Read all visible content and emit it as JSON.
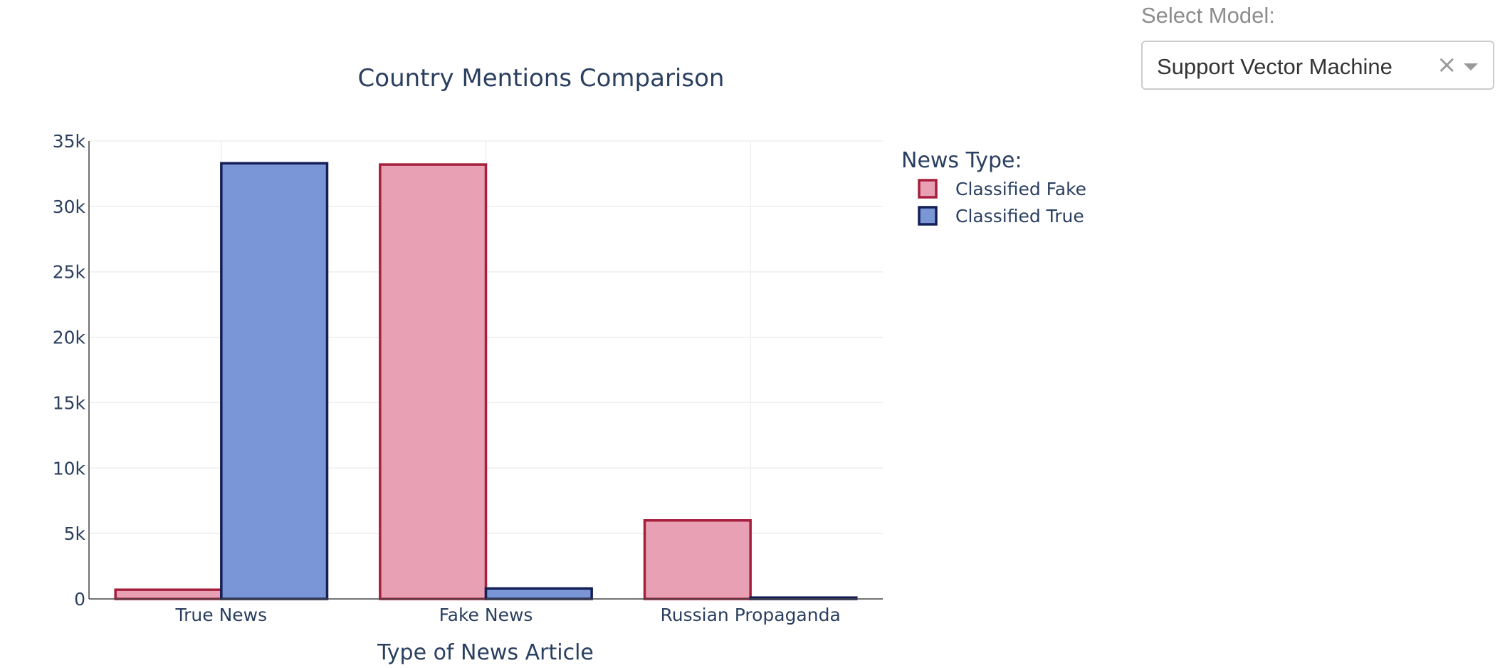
{
  "controls": {
    "model_label": "Select Model:",
    "model_value": "Support Vector Machine",
    "clear_icon": "close-icon",
    "dropdown_icon": "caret-down-icon"
  },
  "colors": {
    "fake_fill": "#e8a0b4",
    "fake_line": "#a61f3c",
    "true_fill": "#7a96d6",
    "true_line": "#141f57",
    "text": "#2a3f5f",
    "grid": "#eeeeee",
    "axis": "#444444"
  },
  "chart_data": {
    "type": "bar",
    "title": "Country Mentions Comparison",
    "xlabel": "Type of News Article",
    "ylabel": "",
    "categories": [
      "True News",
      "Fake News",
      "Russian Propaganda"
    ],
    "ylim": [
      0,
      35000
    ],
    "yticks": [
      0,
      5000,
      10000,
      15000,
      20000,
      25000,
      30000,
      35000
    ],
    "ytick_labels": [
      "0",
      "5k",
      "10k",
      "15k",
      "20k",
      "25k",
      "30k",
      "35k"
    ],
    "grid": true,
    "legend": {
      "title": "News Type:",
      "position": "top-right"
    },
    "series": [
      {
        "name": "Classified Fake",
        "values": [
          700,
          33200,
          6000
        ]
      },
      {
        "name": "Classified True",
        "values": [
          33300,
          800,
          100
        ]
      }
    ]
  }
}
